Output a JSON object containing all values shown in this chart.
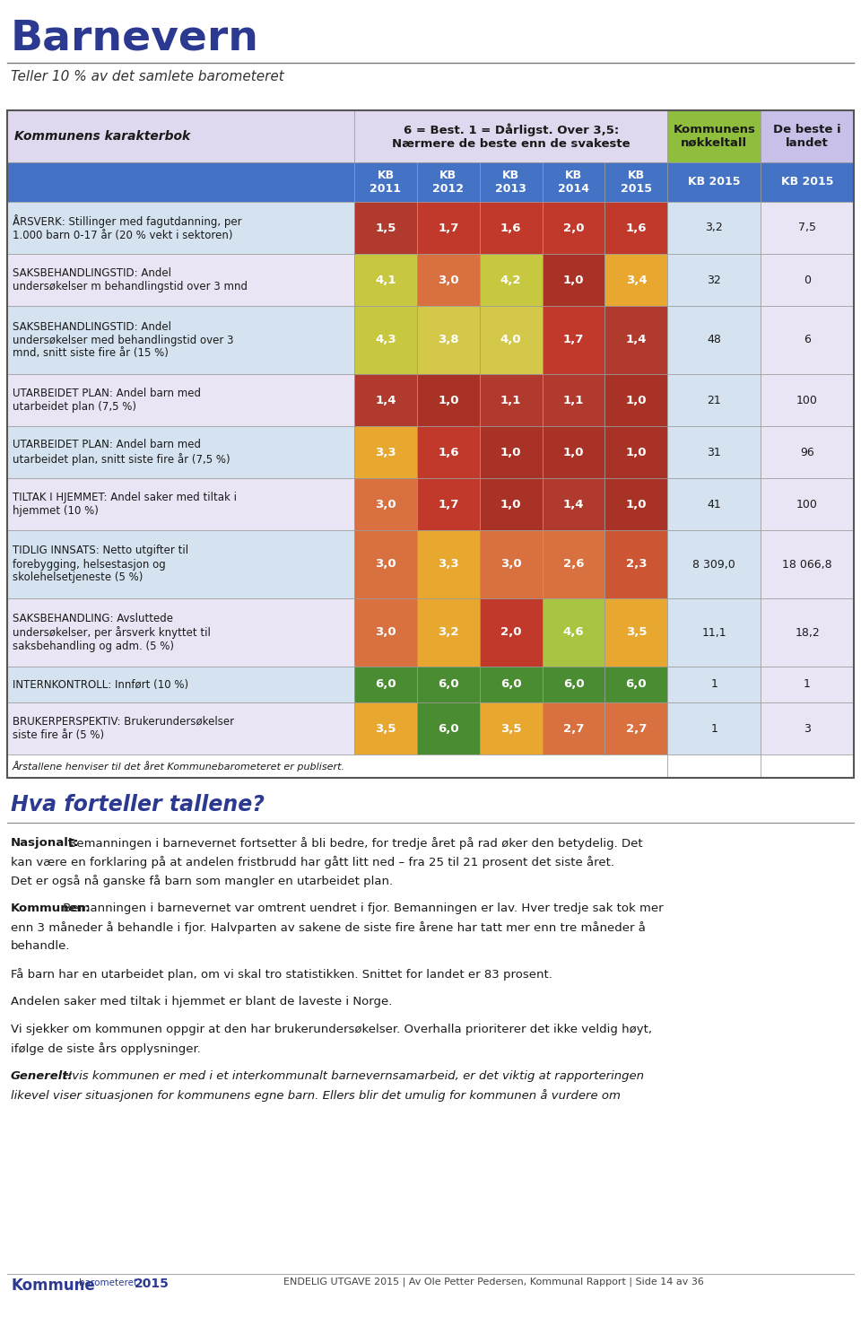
{
  "title": "Barnevern",
  "subtitle": "Teller 10 % av det samlete barometeret",
  "header_col1": "Kommunens karakterbok",
  "header_col2_line1": "6 = Best. 1 = Dårligst. Over 3,5:",
  "header_col2_line2": "Nærmere de beste enn de svakeste",
  "header_col3": "Kommunens\nnøkkeltall",
  "header_col4": "De beste i\nlandet",
  "subheader_years": [
    "KB\n2011",
    "KB\n2012",
    "KB\n2013",
    "KB\n2014",
    "KB\n2015"
  ],
  "subheader_col3": "KB 2015",
  "subheader_col4": "KB 2015",
  "rows": [
    {
      "label": "ÅRSVERK: Stillinger med fagutdanning, per\n1.000 barn 0-17 år (20 % vekt i sektoren)",
      "values": [
        1.5,
        1.7,
        1.6,
        2.0,
        1.6
      ],
      "nokkeltall": "3,2",
      "beste": "7,5",
      "nlines": 2
    },
    {
      "label": "SAKSBEHANDLINGSTID: Andel\nundersøkelser m behandlingstid over 3 mnd",
      "values": [
        4.1,
        3.0,
        4.2,
        1.0,
        3.4
      ],
      "nokkeltall": "32",
      "beste": "0",
      "nlines": 2
    },
    {
      "label": "SAKSBEHANDLINGSTID: Andel\nundersøkelser med behandlingstid over 3\nmnd, snitt siste fire år (15 %)",
      "values": [
        4.3,
        3.8,
        4.0,
        1.7,
        1.4
      ],
      "nokkeltall": "48",
      "beste": "6",
      "nlines": 3
    },
    {
      "label": "UTARBEIDET PLAN: Andel barn med\nutarbeidet plan (7,5 %)",
      "values": [
        1.4,
        1.0,
        1.1,
        1.1,
        1.0
      ],
      "nokkeltall": "21",
      "beste": "100",
      "nlines": 2
    },
    {
      "label": "UTARBEIDET PLAN: Andel barn med\nutarbeidet plan, snitt siste fire år (7,5 %)",
      "values": [
        3.3,
        1.6,
        1.0,
        1.0,
        1.0
      ],
      "nokkeltall": "31",
      "beste": "96",
      "nlines": 2
    },
    {
      "label": "TILTAK I HJEMMET: Andel saker med tiltak i\nhjemmet (10 %)",
      "values": [
        3.0,
        1.7,
        1.0,
        1.4,
        1.0
      ],
      "nokkeltall": "41",
      "beste": "100",
      "nlines": 2
    },
    {
      "label": "TIDLIG INNSATS: Netto utgifter til\nforebygging, helsestasjon og\nskolehelsetjeneste (5 %)",
      "values": [
        3.0,
        3.3,
        3.0,
        2.6,
        2.3
      ],
      "nokkeltall": "8 309,0",
      "beste": "18 066,8",
      "nlines": 3
    },
    {
      "label": "SAKSBEHANDLING: Avsluttede\nundersøkelser, per årsverk knyttet til\nsaksbehandling og adm. (5 %)",
      "values": [
        3.0,
        3.2,
        2.0,
        4.6,
        3.5
      ],
      "nokkeltall": "11,1",
      "beste": "18,2",
      "nlines": 3
    },
    {
      "label": "INTERNKONTROLL: Innført (10 %)",
      "values": [
        6.0,
        6.0,
        6.0,
        6.0,
        6.0
      ],
      "nokkeltall": "1",
      "beste": "1",
      "nlines": 1
    },
    {
      "label": "BRUKERPERSPEKTIV: Brukerundersøkelser\nsiste fire år (5 %)",
      "values": [
        3.5,
        6.0,
        3.5,
        2.7,
        2.7
      ],
      "nokkeltall": "1",
      "beste": "3",
      "nlines": 2
    }
  ],
  "footnote": "Årstallene henviser til det året Kommunebarometeret er publisert.",
  "section2_title": "Hva forteller tallene?",
  "paragraphs": [
    {
      "bold_prefix": "Nasjonalt:",
      "text": " Bemanningen i barnevernet fortsetter å bli bedre, for tredje året på rad øker den betydelig. Det kan være en forklaring på at andelen fristbrudd har gått litt ned – fra 25 til 21 prosent det siste året. Det er også nå ganske få barn som mangler en utarbeidet plan.",
      "italic": false
    },
    {
      "bold_prefix": "Kommunen:",
      "text": " Bemanningen i barnevernet var omtrent uendret i fjor. Bemanningen er lav. Hver tredje sak tok mer enn 3 måneder å behandle i fjor. Halvparten av sakene de siste fire årene har tatt mer enn tre måneder å behandle.",
      "italic": false
    },
    {
      "bold_prefix": "",
      "text": "Få barn har en utarbeidet plan, om vi skal tro statistikken. Snittet for landet er 83 prosent.",
      "italic": false
    },
    {
      "bold_prefix": "",
      "text": "Andelen saker med tiltak i hjemmet er blant de laveste i Norge.",
      "italic": false
    },
    {
      "bold_prefix": "",
      "text": "Vi sjekker om kommunen oppgir at den har brukerundersøkelser. Overhalla prioriterer det ikke veldig høyt, ifølge de siste års opplysninger.",
      "italic": false
    },
    {
      "bold_prefix": "Generelt:",
      "text": " Hvis kommunen er med i et interkommunalt barnevernsamarbeid, er det viktig at rapporteringen likevel viser situasjonen for kommunens egne barn. Ellers blir det umulig for kommunen å vurdere om",
      "italic": true
    }
  ],
  "footer_text": "ENDELIG UTGAVE 2015 | Av Ole Petter Pedersen, Kommunal Rapport | Side 14 av 36",
  "title_color": "#2B3990",
  "header_lavender": "#E0D8EE",
  "header_green": "#8FBE3C",
  "header_purple": "#C8C0E8",
  "subheader_blue": "#4472C4",
  "row_blue": "#D5E3F0",
  "row_lavender": "#EAE5F5",
  "nokkeltall_bg": "#D5E3F0",
  "beste_bg": "#EAE5F5",
  "border_color": "#999999",
  "text_color": "#1A1A1A",
  "footer_color": "#444444"
}
